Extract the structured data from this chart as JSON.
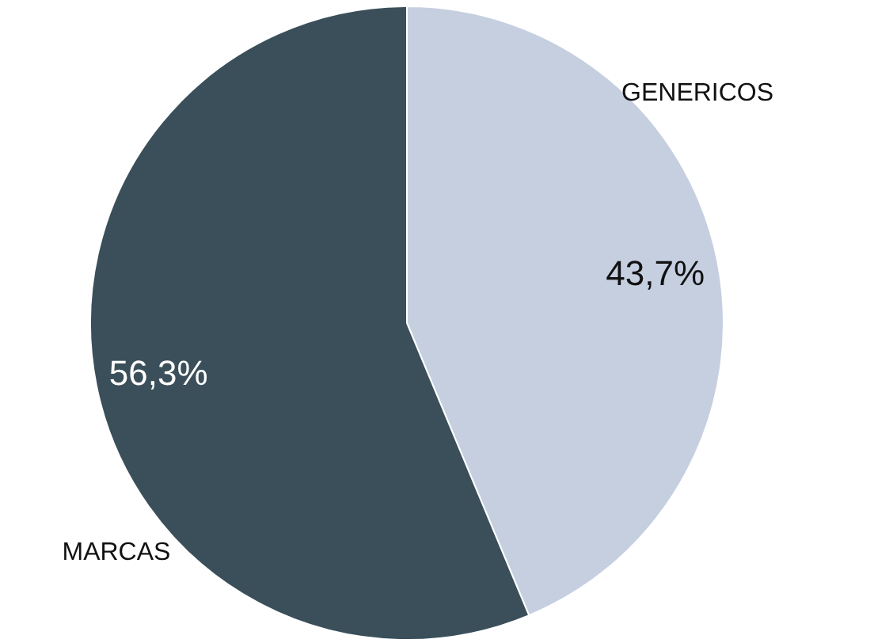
{
  "chart_data": {
    "type": "pie",
    "categories": [
      "GENERICOS",
      "MARCAS"
    ],
    "values": [
      43.7,
      56.3
    ],
    "colors": [
      "#c5cfe0",
      "#3a4f5a"
    ],
    "value_labels": [
      "43,7%",
      "56,3%"
    ],
    "legend": false
  }
}
